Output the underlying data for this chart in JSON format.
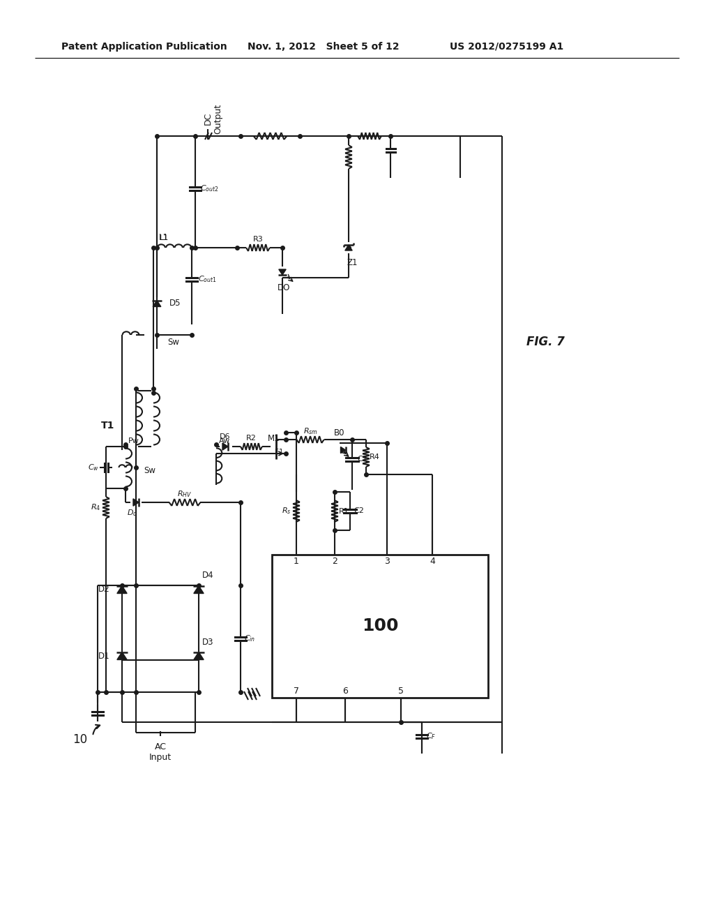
{
  "header_left": "Patent Application Publication",
  "header_mid": "Nov. 1, 2012   Sheet 5 of 12",
  "header_right": "US 2012/0275199 A1",
  "fig_label": "FIG. 7",
  "background": "#ffffff",
  "line_color": "#1a1a1a",
  "text_color": "#1a1a1a",
  "lw": 1.5
}
